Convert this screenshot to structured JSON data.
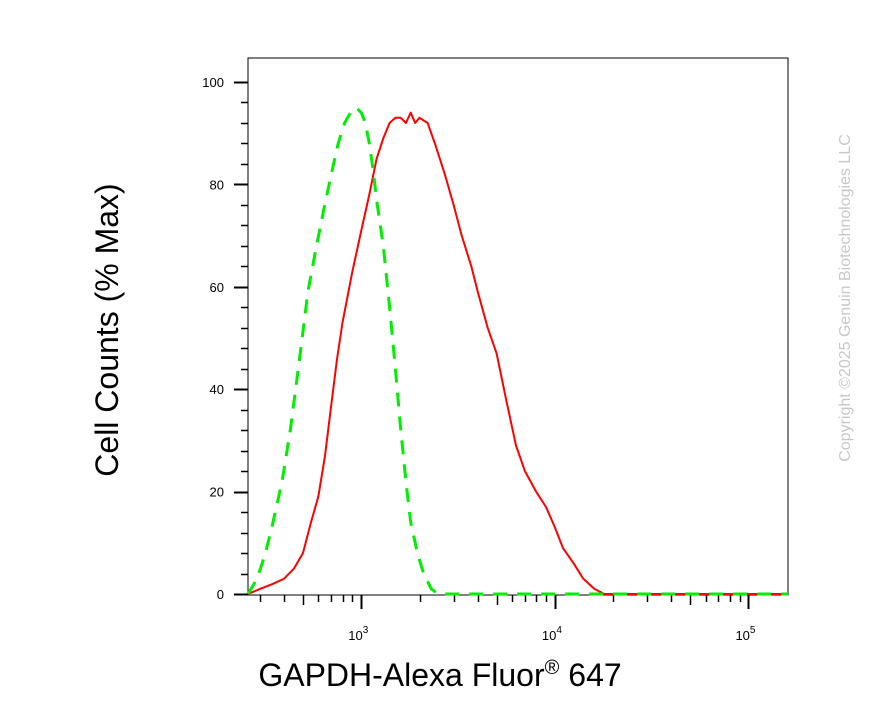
{
  "chart_data": {
    "type": "line",
    "title": "",
    "xlabel": "GAPDH-Alexa Fluor",
    "xlabel_superscript": "®",
    "xlabel_suffix": " 647",
    "ylabel": "Cell Counts (% Max)",
    "x_scale": "log",
    "xlim": [
      260,
      160000
    ],
    "ylim": [
      0,
      100
    ],
    "y_ticks": [
      0,
      20,
      40,
      60,
      80,
      100
    ],
    "x_major_ticks": [
      {
        "value": 1000,
        "base": "10",
        "exp": "3"
      },
      {
        "value": 10000,
        "base": "10",
        "exp": "4"
      },
      {
        "value": 100000,
        "base": "10",
        "exp": "5"
      }
    ],
    "grid": false,
    "legend": "none",
    "series": [
      {
        "color": "#ff0000",
        "style": "solid",
        "points": [
          [
            260,
            0
          ],
          [
            300,
            1
          ],
          [
            350,
            2
          ],
          [
            400,
            3
          ],
          [
            450,
            5
          ],
          [
            500,
            8
          ],
          [
            550,
            14
          ],
          [
            600,
            19
          ],
          [
            650,
            27
          ],
          [
            700,
            37
          ],
          [
            750,
            46
          ],
          [
            800,
            53
          ],
          [
            900,
            63
          ],
          [
            1000,
            71
          ],
          [
            1100,
            78
          ],
          [
            1200,
            85
          ],
          [
            1300,
            89
          ],
          [
            1400,
            92
          ],
          [
            1500,
            93
          ],
          [
            1600,
            93
          ],
          [
            1700,
            92
          ],
          [
            1800,
            94
          ],
          [
            1900,
            92
          ],
          [
            2000,
            93
          ],
          [
            2200,
            92
          ],
          [
            2400,
            88
          ],
          [
            2700,
            82
          ],
          [
            3000,
            76
          ],
          [
            3300,
            70
          ],
          [
            3700,
            64
          ],
          [
            4000,
            59
          ],
          [
            4500,
            52
          ],
          [
            5000,
            47
          ],
          [
            5600,
            38
          ],
          [
            6300,
            29
          ],
          [
            7000,
            24
          ],
          [
            8000,
            20
          ],
          [
            9000,
            17
          ],
          [
            10000,
            13
          ],
          [
            11000,
            9
          ],
          [
            12500,
            6
          ],
          [
            14000,
            3
          ],
          [
            16000,
            1
          ],
          [
            18000,
            0
          ],
          [
            160000,
            0
          ]
        ]
      },
      {
        "color": "#00ee00",
        "style": "dashed",
        "points": [
          [
            260,
            0
          ],
          [
            290,
            3
          ],
          [
            320,
            8
          ],
          [
            350,
            14
          ],
          [
            390,
            22
          ],
          [
            430,
            32
          ],
          [
            480,
            46
          ],
          [
            530,
            59
          ],
          [
            580,
            67
          ],
          [
            640,
            75
          ],
          [
            700,
            82
          ],
          [
            760,
            88
          ],
          [
            820,
            92
          ],
          [
            880,
            94
          ],
          [
            940,
            95
          ],
          [
            1000,
            94
          ],
          [
            1050,
            92
          ],
          [
            1100,
            88
          ],
          [
            1150,
            83
          ],
          [
            1200,
            77
          ],
          [
            1300,
            68
          ],
          [
            1400,
            56
          ],
          [
            1500,
            44
          ],
          [
            1600,
            32
          ],
          [
            1700,
            22
          ],
          [
            1800,
            14
          ],
          [
            1950,
            8
          ],
          [
            2100,
            4
          ],
          [
            2300,
            1
          ],
          [
            2500,
            0
          ],
          [
            160000,
            0
          ]
        ]
      }
    ]
  },
  "copyright": "Copyright ©2025 Genuin Biotechnologies LLC"
}
